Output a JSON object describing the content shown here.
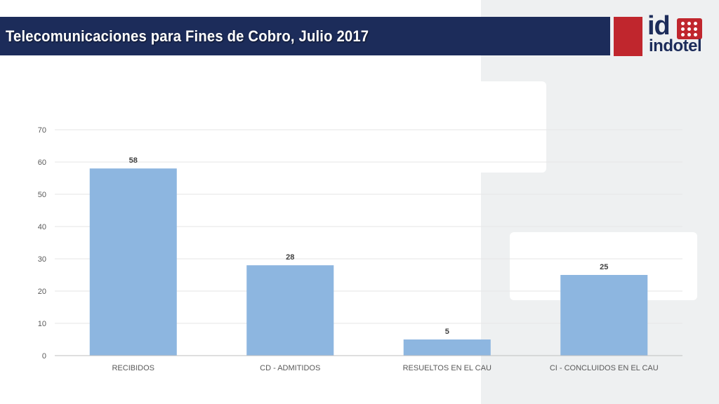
{
  "header": {
    "title": "Telecomunicaciones para Fines de Cobro, Julio 2017"
  },
  "logo": {
    "mark": "id",
    "name": "indotel",
    "colors": {
      "red": "#c0262d",
      "navy": "#1c2c5a"
    }
  },
  "chart_data": {
    "type": "bar",
    "categories": [
      "RECIBIDOS",
      "CD - ADMITIDOS",
      "RESUELTOS EN EL CAU",
      "CI - CONCLUIDOS EN EL CAU"
    ],
    "values": [
      58,
      28,
      5,
      25
    ],
    "yticks": [
      0,
      10,
      20,
      30,
      40,
      50,
      60,
      70
    ],
    "ylim": [
      0,
      70
    ],
    "grid": true,
    "bar_color": "#8db6e0",
    "data_labels": true
  }
}
